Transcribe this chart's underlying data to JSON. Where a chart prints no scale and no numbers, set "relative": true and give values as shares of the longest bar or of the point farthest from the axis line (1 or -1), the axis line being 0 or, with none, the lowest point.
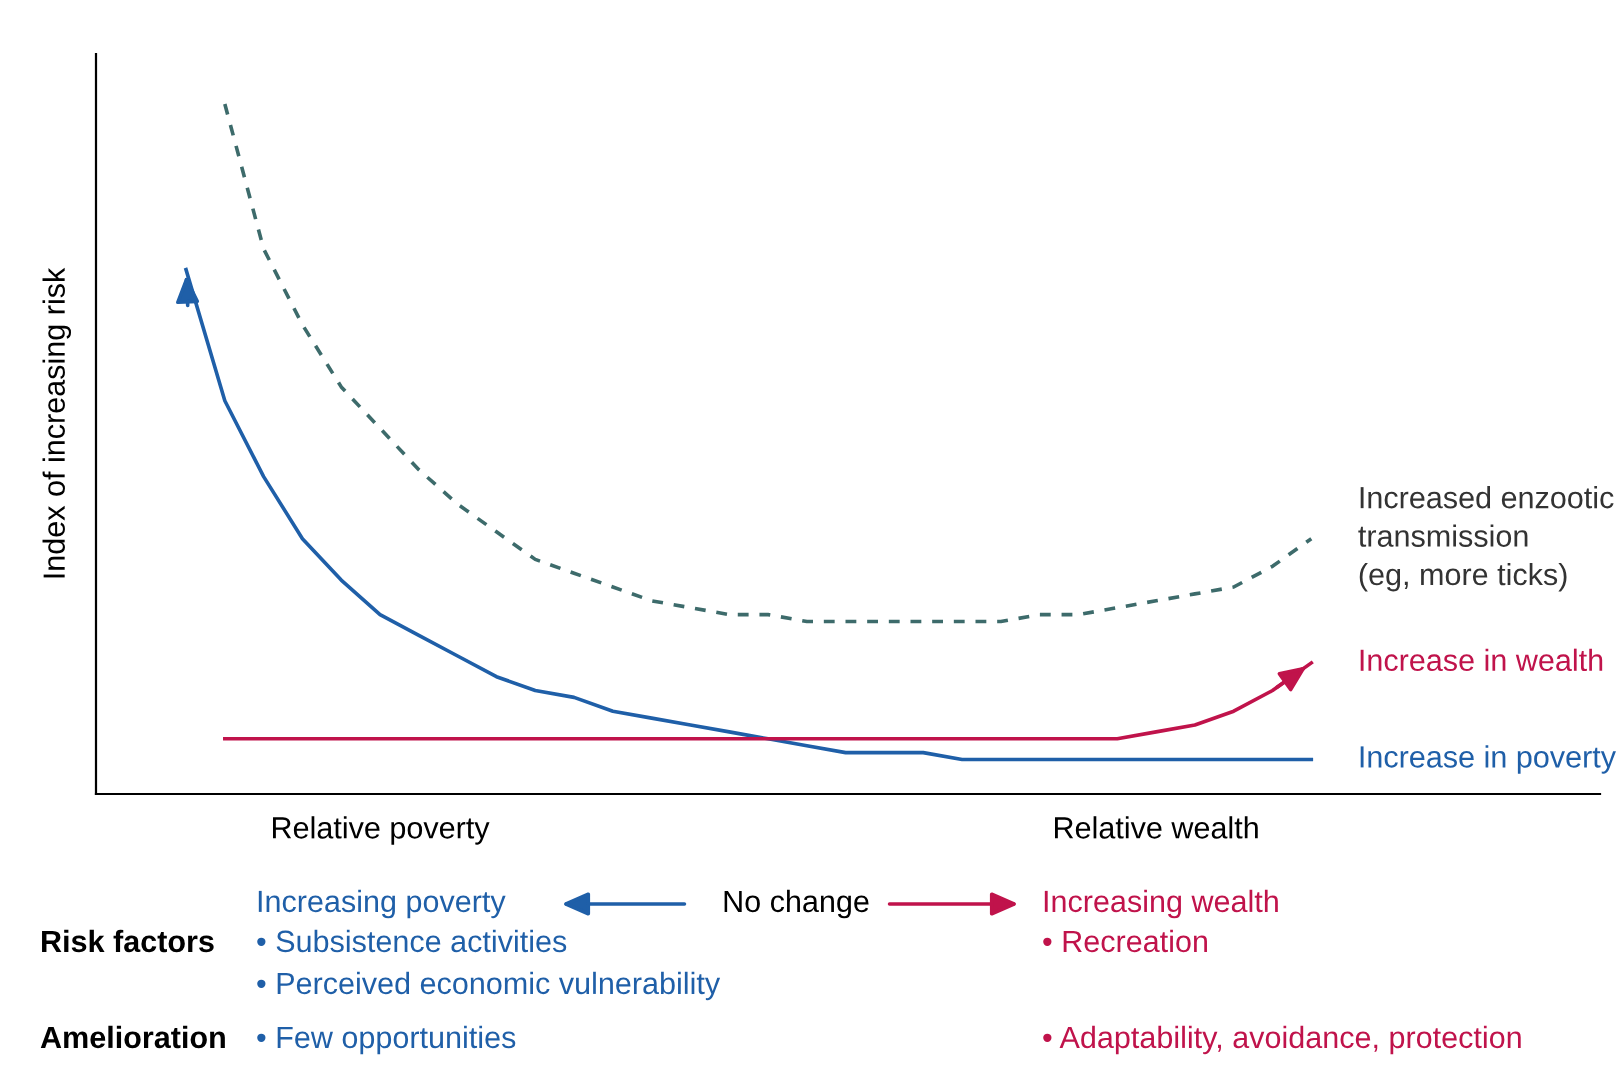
{
  "chart_data": {
    "type": "line",
    "relative": true,
    "ylabel": "Index of increasing risk",
    "categories": [
      null,
      null,
      null,
      null,
      null,
      "Relative poverty",
      null,
      null,
      null,
      null,
      null,
      null,
      null,
      null,
      null,
      null,
      null,
      null,
      null,
      null,
      null,
      null,
      null,
      null,
      null,
      "Relative wealth",
      null,
      null,
      null,
      null
    ],
    "grid": false,
    "legend": "right",
    "series": [
      {
        "name": "Increased enzootic\ntransmission\n(eg, more ticks)",
        "color": "#3d6b6b",
        "line_style": "dashed",
        "values": [
          null,
          1.0,
          0.79,
          0.68,
          0.59,
          0.53,
          0.47,
          0.42,
          0.38,
          0.34,
          0.32,
          0.3,
          0.28,
          0.27,
          0.26,
          0.26,
          0.25,
          0.25,
          0.25,
          0.25,
          0.25,
          0.25,
          0.26,
          0.26,
          0.27,
          0.28,
          0.29,
          0.3,
          0.33,
          0.37
        ]
      },
      {
        "name": "Increase in poverty",
        "color": "#1f5fa8",
        "line_style": "solid",
        "values": [
          0.76,
          0.57,
          0.46,
          0.37,
          0.31,
          0.26,
          0.23,
          0.2,
          0.17,
          0.15,
          0.14,
          0.12,
          0.11,
          0.1,
          0.09,
          0.08,
          0.07,
          0.06,
          0.06,
          0.06,
          0.05,
          0.05,
          0.05,
          0.05,
          0.05,
          0.05,
          0.05,
          0.05,
          0.05,
          0.05
        ]
      },
      {
        "name": "Increase in wealth",
        "color": "#c0134b",
        "line_style": "solid",
        "values": [
          null,
          0.08,
          0.08,
          0.08,
          0.08,
          0.08,
          0.08,
          0.08,
          0.08,
          0.08,
          0.08,
          0.08,
          0.08,
          0.08,
          0.08,
          0.08,
          0.08,
          0.08,
          0.08,
          0.08,
          0.08,
          0.08,
          0.08,
          0.08,
          0.08,
          0.09,
          0.1,
          0.12,
          0.15,
          0.19
        ]
      }
    ],
    "annotations": [
      "Increasing poverty",
      "No change",
      "Increasing wealth",
      "Risk factors",
      "• Subsistence activities",
      "• Perceived economic vulnerability",
      "• Recreation",
      "Amelioration",
      "• Few opportunities",
      "• Adaptability, avoidance, protection"
    ]
  }
}
